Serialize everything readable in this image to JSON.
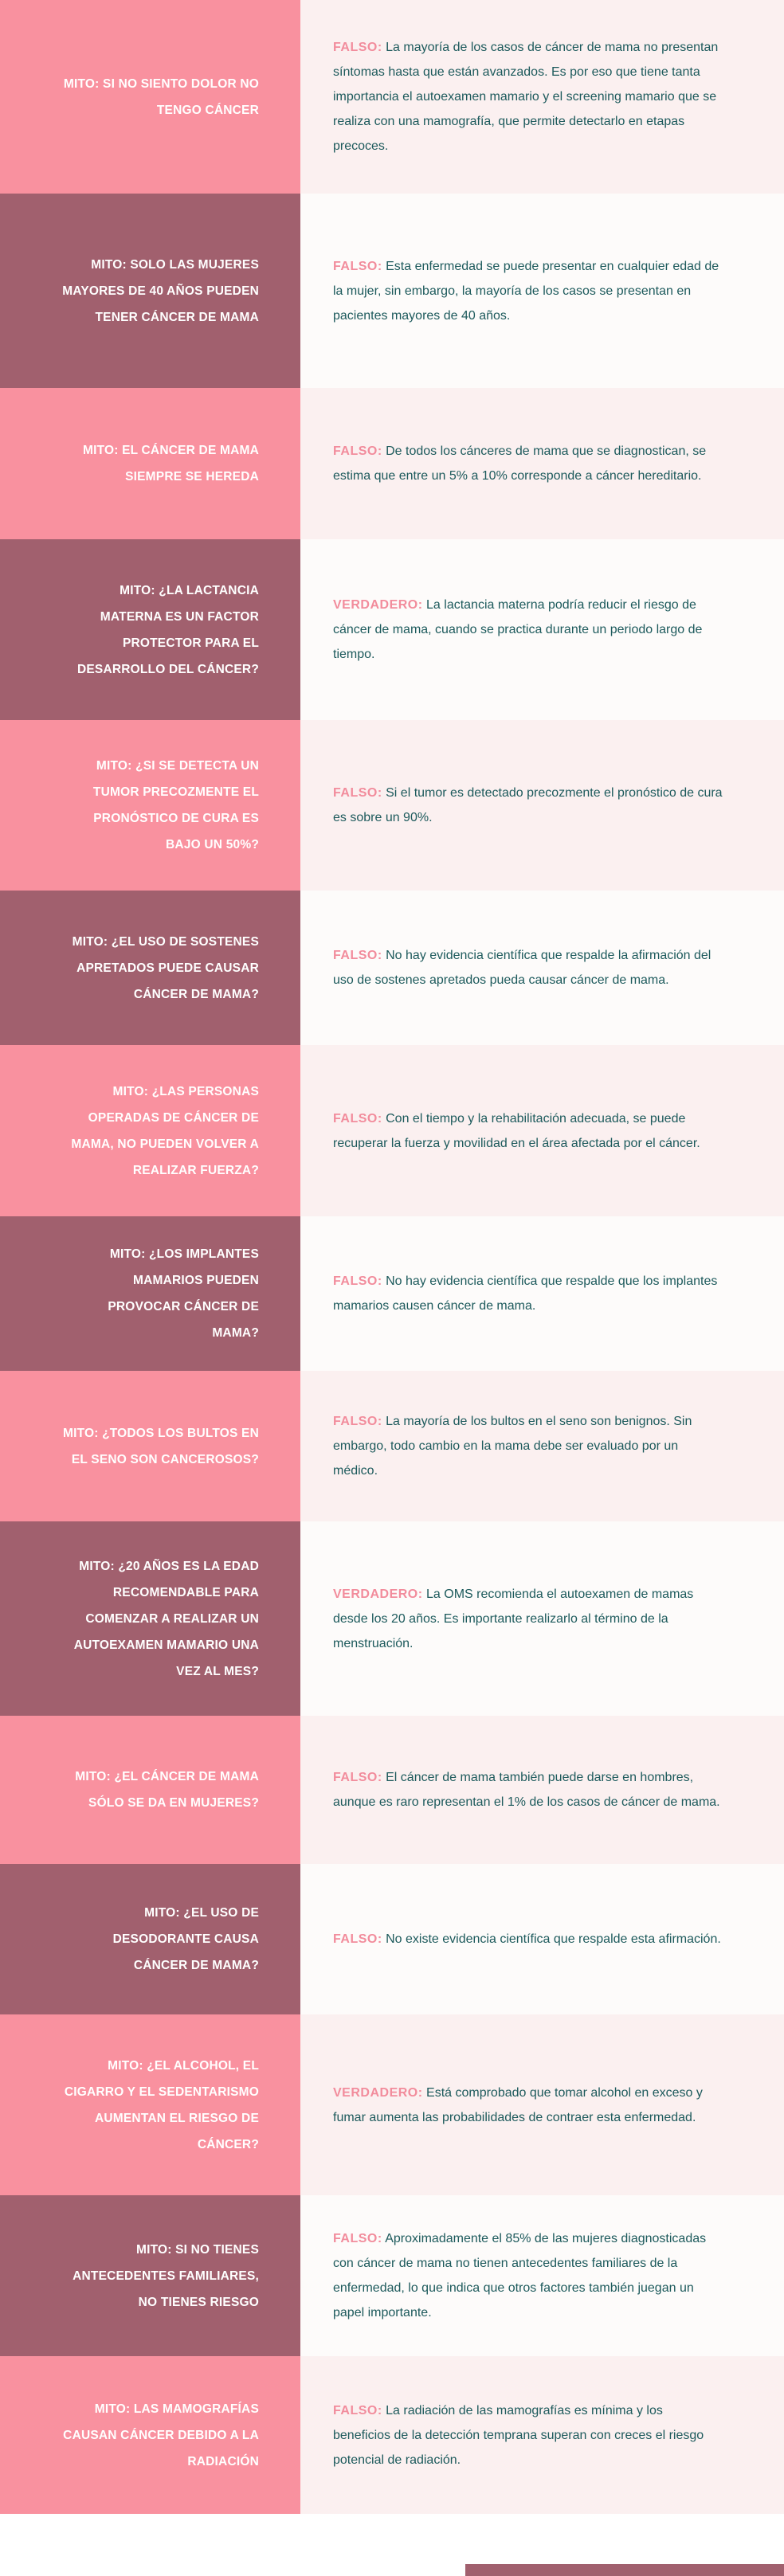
{
  "colors": {
    "myth_light": "#f9919f",
    "myth_dark": "#a1606e",
    "verdict": "#f28c9c",
    "body_text": "#1d5a5c"
  },
  "rows": [
    {
      "myth": "MITO: SI NO SIENTO DOLOR NO TENGO CÁNCER",
      "verdict": "FALSO:",
      "text": "La mayoría de los casos de cáncer de mama no presentan síntomas hasta que están avanzados. Es por eso que tiene tanta importancia el autoexamen mamario y el screening mamario que se realiza con una mamografía, que permite detectarlo en etapas precoces."
    },
    {
      "myth": "MITO: SOLO LAS MUJERES MAYORES DE 40 AÑOS PUEDEN TENER CÁNCER DE MAMA",
      "verdict": "FALSO:",
      "text": "Esta enfermedad se puede presentar en cualquier edad de la mujer, sin embargo, la mayoría de los casos se presentan en pacientes mayores de 40 años."
    },
    {
      "myth": "MITO: EL CÁNCER DE MAMA SIEMPRE SE HEREDA",
      "verdict": "FALSO:",
      "text": "De todos los cánceres de mama que se diagnostican, se estima que entre un 5% a 10% corresponde a cáncer hereditario."
    },
    {
      "myth": "MITO: ¿LA LACTANCIA MATERNA ES UN FACTOR PROTECTOR PARA EL DESARROLLO DEL CÁNCER?",
      "verdict": "VERDADERO:",
      "text": "La lactancia materna podría reducir el riesgo de cáncer de mama, cuando se practica durante un periodo largo de tiempo."
    },
    {
      "myth": "MITO: ¿SI SE DETECTA UN TUMOR PRECOZMENTE EL PRONÓSTICO DE CURA ES BAJO UN 50%?",
      "verdict": "FALSO:",
      "text": "Si el tumor es detectado precozmente el pronóstico de cura es sobre un 90%."
    },
    {
      "myth": "MITO: ¿EL USO DE SOSTENES APRETADOS PUEDE CAUSAR CÁNCER DE MAMA?",
      "verdict": "FALSO:",
      "text": "No hay evidencia científica que respalde la afirmación del uso de sostenes apretados pueda causar cáncer de mama."
    },
    {
      "myth": "MITO: ¿LAS PERSONAS OPERADAS DE CÁNCER DE MAMA, NO PUEDEN VOLVER A REALIZAR FUERZA?",
      "verdict": "FALSO:",
      "text": "Con el tiempo y la rehabilitación adecuada, se puede recuperar la fuerza y movilidad en el área afectada por el cáncer."
    },
    {
      "myth": "MITO: ¿LOS IMPLANTES MAMARIOS PUEDEN PROVOCAR CÁNCER DE MAMA?",
      "verdict": "FALSO:",
      "text": "No hay evidencia científica que respalde que los implantes mamarios causen cáncer de mama."
    },
    {
      "myth": "MITO: ¿TODOS LOS BULTOS EN EL SENO SON CANCEROSOS?",
      "verdict": "FALSO:",
      "text": "La mayoría de los bultos en el seno son benignos. Sin embargo, todo cambio en la mama debe ser evaluado por un médico."
    },
    {
      "myth": "MITO: ¿20 AÑOS ES LA EDAD RECOMENDABLE PARA COMENZAR A REALIZAR UN AUTOEXAMEN MAMARIO UNA VEZ AL MES?",
      "verdict": "VERDADERO:",
      "text": "La OMS recomienda el autoexamen de mamas desde los 20 años. Es importante realizarlo al término de la menstruación."
    },
    {
      "myth": "MITO: ¿EL CÁNCER DE MAMA SÓLO SE DA EN MUJERES?",
      "verdict": "FALSO:",
      "text": "El cáncer de mama también puede darse en hombres, aunque es raro representan el 1% de los casos de cáncer de mama."
    },
    {
      "myth": "MITO: ¿EL USO DE DESODORANTE CAUSA CÁNCER DE MAMA?",
      "verdict": "FALSO:",
      "text": "No existe evidencia científica que respalde esta afirmación."
    },
    {
      "myth": "MITO: ¿EL ALCOHOL, EL CIGARRO Y EL SEDENTARISMO AUMENTAN EL RIESGO DE CÁNCER?",
      "verdict": "VERDADERO:",
      "text": "Está comprobado que tomar alcohol en exceso y fumar aumenta las probabilidades de contraer esta enfermedad."
    },
    {
      "myth": "MITO: SI NO TIENES ANTECEDENTES FAMILIARES, NO TIENES RIESGO",
      "verdict": "FALSO:",
      "text": "Aproximadamente el 85% de las mujeres diagnosticadas con cáncer de mama no tienen antecedentes familiares de la enfermedad, lo que indica que otros factores también juegan un papel importante."
    },
    {
      "myth": "MITO: LAS MAMOGRAFÍAS CAUSAN CÁNCER DEBIDO A LA RADIACIÓN",
      "verdict": "FALSO:",
      "text": "La radiación de las mamografías es mínima y los beneficios de la detección temprana superan con creces el riesgo potencial de radiación."
    }
  ]
}
